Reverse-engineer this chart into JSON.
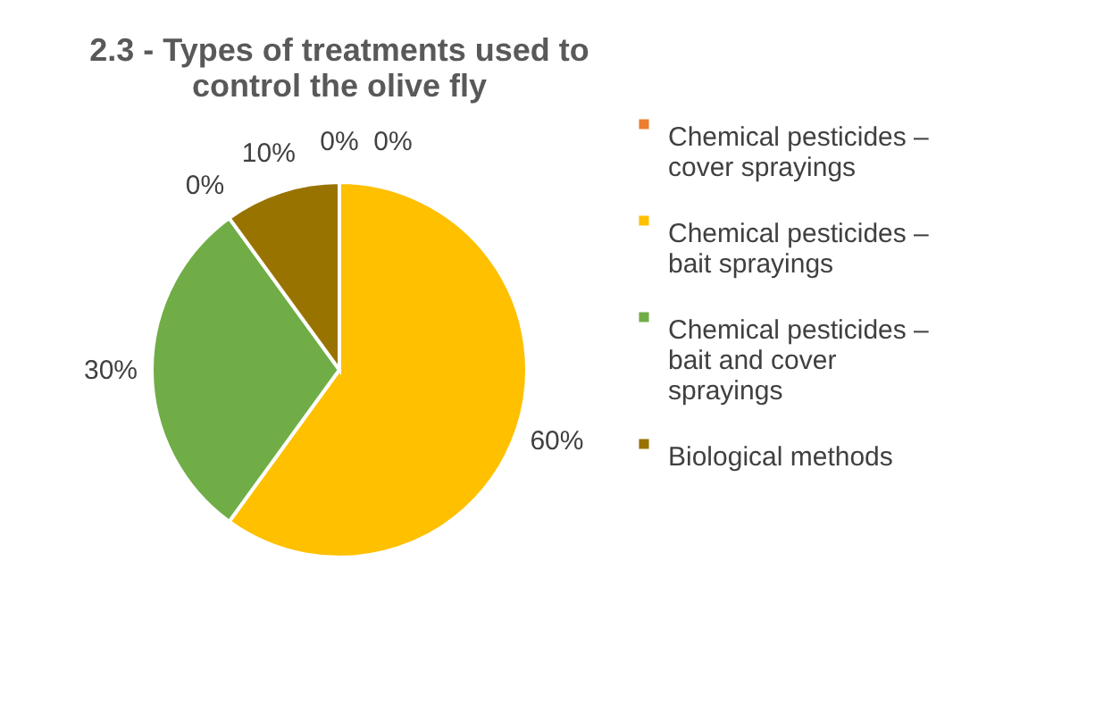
{
  "chart_data": {
    "type": "pie",
    "title": "2.3 - Types of treatments used to control the olive fly",
    "categories": [
      "Chemical pesticides – cover sprayings",
      "Chemical pesticides – bait sprayings",
      "Chemical pesticides – bait and cover sprayings",
      null,
      "Biological methods",
      null
    ],
    "values": [
      0,
      60,
      30,
      0,
      10,
      0
    ],
    "colors": [
      "#ed7d31",
      "#ffc000",
      "#70ad47",
      "#4472c4",
      "#997300",
      "#a5a5a5"
    ],
    "value_labels": [
      "0%",
      "60%",
      "30%",
      "0%",
      "10%",
      "0%"
    ],
    "legend": "right"
  }
}
